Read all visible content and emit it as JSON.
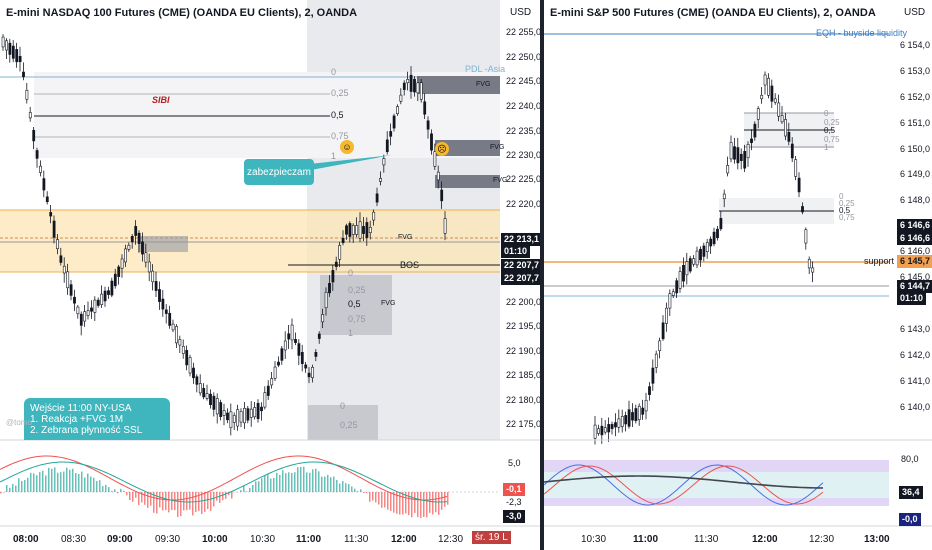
{
  "left_chart": {
    "title": "E-mini NASDAQ 100 Futures (CME) (OANDA EU Clients), 2, OANDA",
    "currency": "USD",
    "price_axis": [
      "22 255,0",
      "22 250,0",
      "22 245,0",
      "22 240,0",
      "22 235,0",
      "22 230,0",
      "22 225,0",
      "22 220,0",
      "22 200,0",
      "22 195,0",
      "22 190,0",
      "22 185,0",
      "22 180,0",
      "22 175,0"
    ],
    "time_axis": [
      "08:00",
      "08:30",
      "09:00",
      "09:30",
      "10:00",
      "10:30",
      "11:00",
      "11:30",
      "12:00",
      "12:30"
    ],
    "price_tag_current": "22 213,1",
    "countdown": "01:10",
    "price_tag_2": "22 207,7",
    "price_tag_3": "22 207,7",
    "fib_levels": [
      "0",
      "0,25",
      "0,5",
      "0,75",
      "1"
    ],
    "fib_levels_low": [
      "0",
      "0,25",
      "0,5",
      "0,75",
      "1"
    ],
    "fib_levels_bottom": [
      "0",
      "0,25"
    ],
    "label_sibi": "SIBI",
    "label_pdl": "PDL -Asia",
    "label_bos": "BOS",
    "label_fvg": "FVG",
    "callout": "zabezpieczam",
    "note_title": "Wejście 11:00 NY-USA",
    "note_line1": "1. Reakcja +FVG 1M",
    "note_line2": "2. Zebrana płynność SSL",
    "watermark": "@tomo",
    "osc_axis_top": "5,0",
    "osc_tag1": "-0,1",
    "osc_tag2": "-2,3",
    "osc_tag3": "-3,0",
    "date_badge": "śr. 19 L",
    "colors": {
      "up": "#26a69a",
      "down": "#ef5350",
      "fib": "#787b86",
      "zone": "#fce5b4",
      "gray_zone": "#e9eaee",
      "callout": "#3fb6be"
    }
  },
  "right_chart": {
    "title": "E-mini S&P 500 Futures (CME) (OANDA EU Clients), 2, OANDA",
    "currency": "USD",
    "price_axis": [
      "6 154,0",
      "6 153,0",
      "6 152,0",
      "6 151,0",
      "6 150,0",
      "6 149,0",
      "6 148,0",
      "6 146,0",
      "6 145,0",
      "6 143,0",
      "6 142,0",
      "6 141,0",
      "6 140,0"
    ],
    "time_axis": [
      "10:30",
      "11:00",
      "11:30",
      "12:00",
      "12:30",
      "13:00"
    ],
    "label_eqh": "EQH - buyside liquidity",
    "label_support": "support",
    "tag_1": "6 146,6",
    "tag_2": "6 146,6",
    "tag_support": "6 145,7",
    "tag_current": "6 144,7",
    "countdown": "01:10",
    "fib_levels": [
      "0",
      "0,25",
      "0,5",
      "0,75",
      "1"
    ],
    "osc_axis_top": "80,0",
    "osc_tag1": "36,4",
    "osc_tag2": "-0,0"
  }
}
